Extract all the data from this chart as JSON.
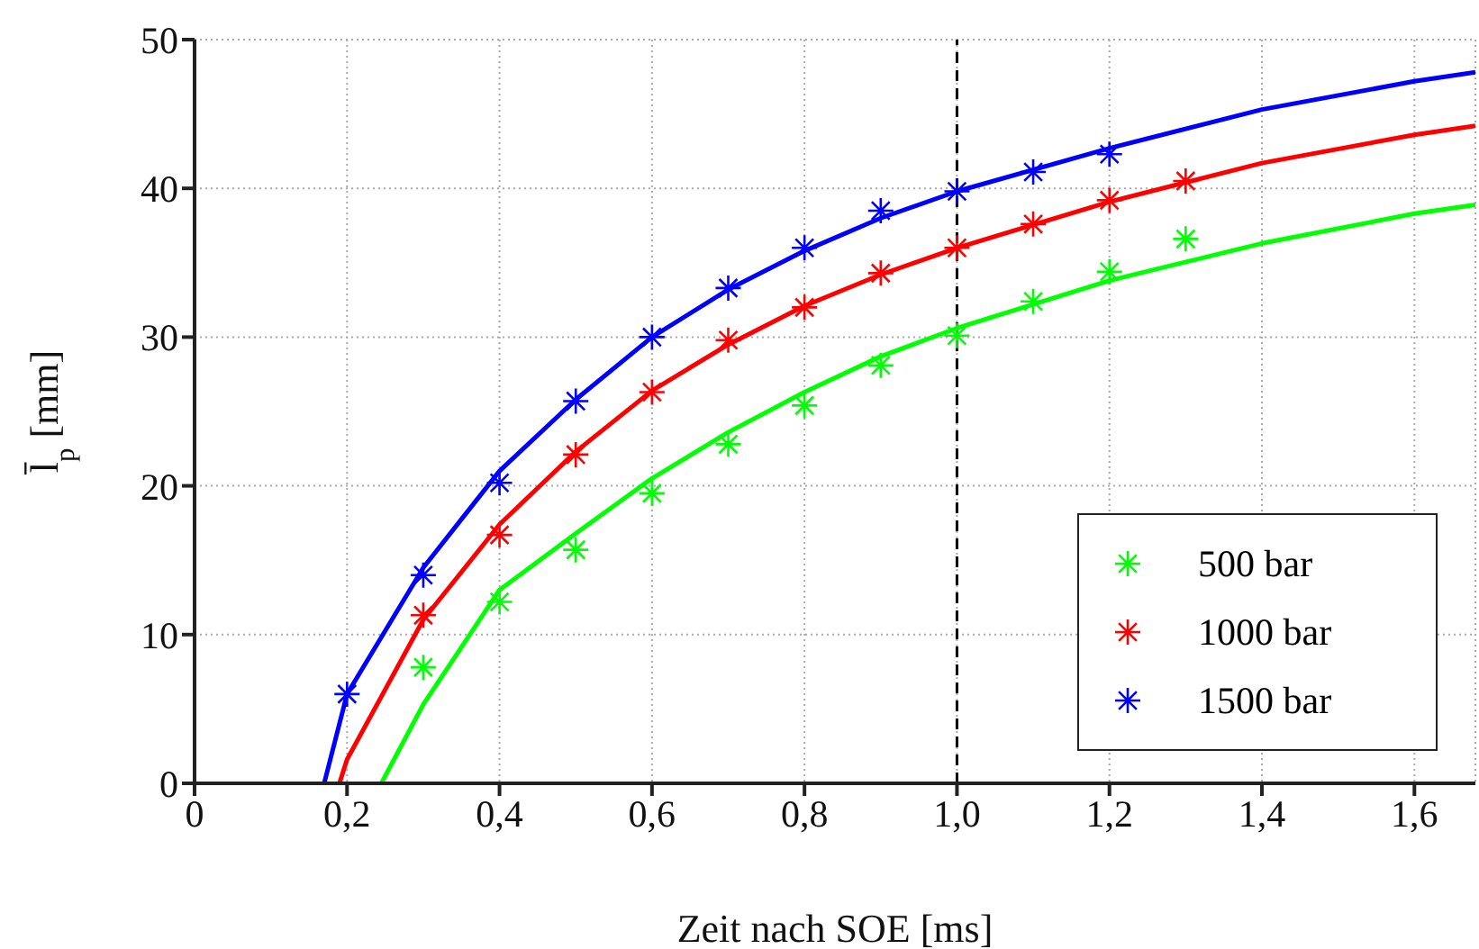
{
  "chart_data": {
    "type": "scatter",
    "xlabel": "Zeit nach SOE [ms]",
    "ylabel": "l̄$_{p}$ [mm]",
    "xlim": [
      0,
      1.68
    ],
    "ylim": [
      0,
      50
    ],
    "xticks": [
      0,
      {
        "value": 0.2,
        "label": "0,2"
      },
      {
        "value": 0.4,
        "label": "0,4"
      },
      {
        "value": 0.6,
        "label": "0,6"
      },
      {
        "value": 0.8,
        "label": "0,8"
      },
      {
        "value": 1.0,
        "label": "1,0"
      },
      {
        "value": 1.2,
        "label": "1,2"
      },
      {
        "value": 1.4,
        "label": "1,4"
      },
      {
        "value": 1.6,
        "label": "1,6"
      }
    ],
    "yticks": [
      0,
      10,
      20,
      30,
      40,
      50
    ],
    "grid": true,
    "legend": "bottom right",
    "marker": "cross",
    "ref_lines": [
      {
        "axis": "x",
        "value": 1.0,
        "color": "#000000",
        "line_style": "dashed"
      }
    ],
    "series": [
      {
        "type": "line",
        "marker": "none",
        "color": "#00ff00",
        "x": [
          0.245,
          0.3,
          0.4,
          0.5,
          0.6,
          0.7,
          0.8,
          0.9,
          1.0,
          1.2,
          1.4,
          1.6,
          1.68
        ],
        "values": [
          0,
          5.3,
          13,
          16.8,
          20.5,
          23.6,
          26.3,
          28.7,
          30.6,
          33.8,
          36.3,
          38.3,
          38.9
        ]
      },
      {
        "type": "line",
        "marker": "none",
        "color": "#ff0000",
        "x": [
          0.19,
          0.2,
          0.3,
          0.4,
          0.5,
          0.6,
          0.7,
          0.8,
          0.9,
          1.0,
          1.2,
          1.4,
          1.6,
          1.68
        ],
        "values": [
          0,
          1.6,
          11,
          17.4,
          22.3,
          26.4,
          29.5,
          32.1,
          34.2,
          36,
          39.1,
          41.7,
          43.6,
          44.2
        ]
      },
      {
        "type": "line",
        "marker": "none",
        "color": "#0000ff",
        "x": [
          0.17,
          0.2,
          0.3,
          0.4,
          0.5,
          0.6,
          0.7,
          0.8,
          0.9,
          1.0,
          1.2,
          1.4,
          1.6,
          1.68
        ],
        "values": [
          0,
          6,
          14.5,
          21,
          25.8,
          30,
          33.2,
          35.8,
          38,
          39.8,
          42.7,
          45.3,
          47.2,
          47.8
        ]
      },
      {
        "name": "500 bar",
        "color": "#00ff00",
        "x": [
          0.3,
          0.4,
          0.5,
          0.6,
          0.7,
          0.8,
          0.9,
          1.0,
          1.1,
          1.2,
          1.3
        ],
        "values": [
          7.8,
          12.2,
          15.7,
          19.5,
          22.8,
          25.4,
          28.1,
          30.1,
          32.4,
          34.4,
          36.6
        ]
      },
      {
        "name": "1000 bar",
        "color": "#ff0000",
        "x": [
          0.3,
          0.4,
          0.5,
          0.6,
          0.7,
          0.8,
          0.9,
          1.0,
          1.1,
          1.2,
          1.3
        ],
        "values": [
          11.3,
          16.7,
          22.1,
          26.3,
          29.8,
          32,
          34.3,
          36,
          37.6,
          39.2,
          40.5
        ]
      },
      {
        "name": "1500 bar",
        "color": "#0000ff",
        "x": [
          0.2,
          0.3,
          0.4,
          0.5,
          0.6,
          0.7,
          0.8,
          0.9,
          1.0,
          1.1,
          1.2
        ],
        "values": [
          6,
          14,
          20.2,
          25.7,
          30,
          33.3,
          36,
          38.5,
          39.8,
          41.1,
          42.3
        ]
      }
    ]
  }
}
